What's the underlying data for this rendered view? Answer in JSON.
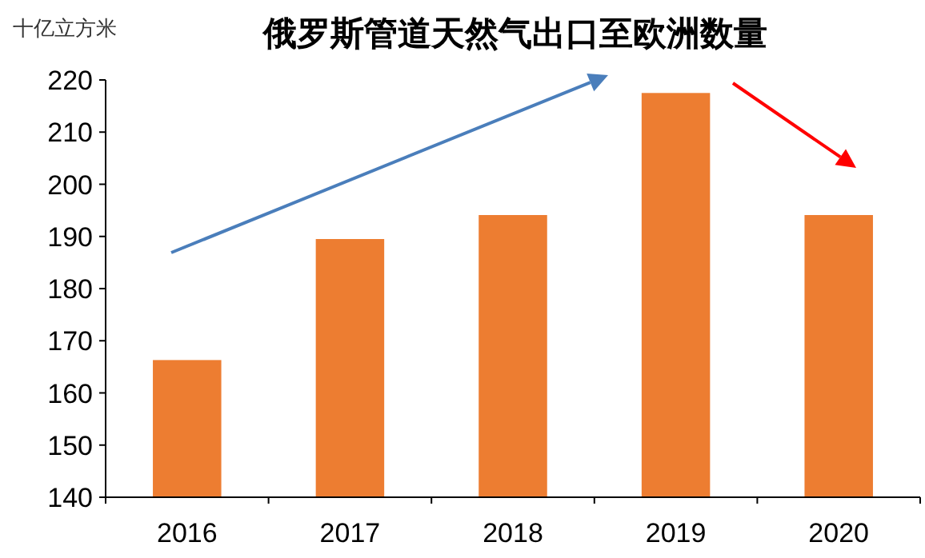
{
  "chart_data": {
    "type": "bar",
    "title": "俄罗斯管道天然气出口至欧洲数量",
    "ylabel": "十亿立方米",
    "categories": [
      "2016",
      "2017",
      "2018",
      "2019",
      "2020"
    ],
    "values": [
      166.3,
      189.5,
      194.1,
      217.5,
      194.1
    ],
    "color": "#ed7d31",
    "ylim": [
      140,
      220
    ],
    "yticks": [
      140,
      150,
      160,
      170,
      180,
      190,
      200,
      210,
      220
    ]
  }
}
